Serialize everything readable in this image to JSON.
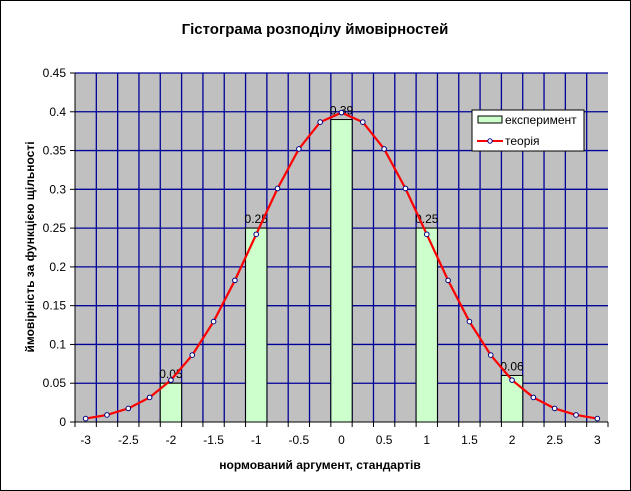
{
  "chart_data": {
    "type": "bar+line",
    "title": "Гістограма розподілу ймовірностей",
    "xlabel": "нормований аргумент, стандартів",
    "ylabel": "ймовірність за функцією щільності",
    "ylim": [
      0,
      0.45
    ],
    "yticks": [
      "0",
      "0.05",
      "0.1",
      "0.15",
      "0.2",
      "0.25",
      "0.3",
      "0.35",
      "0.4",
      "0.45"
    ],
    "xticks": [
      "-3",
      "-2.5",
      "-2",
      "-1.5",
      "-1",
      "-0.5",
      "0",
      "0.5",
      "1",
      "1.5",
      "2",
      "2.5",
      "3"
    ],
    "x": [
      -3,
      -2.75,
      -2.5,
      -2.25,
      -2,
      -1.75,
      -1.5,
      -1.25,
      -1,
      -0.75,
      -0.5,
      -0.25,
      0,
      0.25,
      0.5,
      0.75,
      1,
      1.25,
      1.5,
      1.75,
      2,
      2.25,
      2.5,
      2.75,
      3
    ],
    "series": [
      {
        "name": "експеримент",
        "type": "bar",
        "points": [
          {
            "x": -2,
            "y": 0.05,
            "label": "0.05"
          },
          {
            "x": -1,
            "y": 0.25,
            "label": "0.25"
          },
          {
            "x": 0,
            "y": 0.39,
            "label": "0.39"
          },
          {
            "x": 1,
            "y": 0.25,
            "label": "0.25"
          },
          {
            "x": 2,
            "y": 0.06,
            "label": "0.06"
          }
        ],
        "color": "#ccffcc"
      },
      {
        "name": "теорія",
        "type": "line",
        "values": [
          0.0044,
          0.0091,
          0.0175,
          0.0317,
          0.054,
          0.0863,
          0.1295,
          0.1826,
          0.242,
          0.3011,
          0.3521,
          0.3867,
          0.3989,
          0.3867,
          0.3521,
          0.3011,
          0.242,
          0.1826,
          0.1295,
          0.0863,
          0.054,
          0.0317,
          0.0175,
          0.0091,
          0.0044
        ],
        "color": "#ff0000"
      }
    ],
    "grid": true,
    "legend": "top-right",
    "colors": {
      "plot_bg": "#c0c0c0",
      "grid": "#000099"
    }
  }
}
